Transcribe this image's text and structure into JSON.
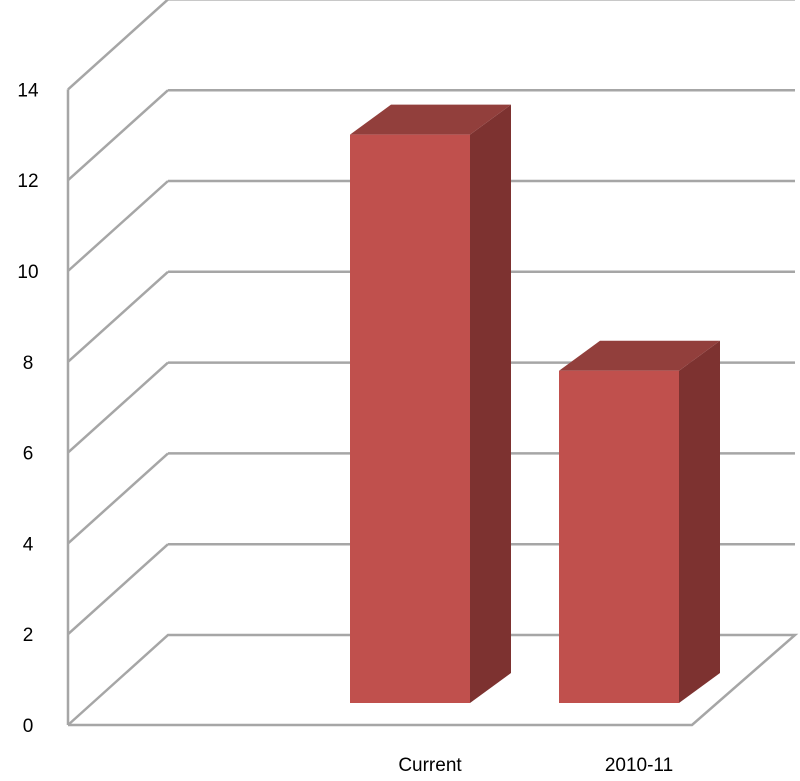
{
  "chart_data": {
    "type": "bar",
    "style": "3d-column",
    "categories": [
      "Current",
      "2010-11"
    ],
    "values": [
      13.4,
      8.2
    ],
    "title": "",
    "xlabel": "",
    "ylabel": "",
    "ylim": [
      0,
      14
    ],
    "yticks": [
      "0",
      "2",
      "4",
      "6",
      "8",
      "10",
      "12",
      "14"
    ],
    "grid": true,
    "legend": "none",
    "colors": {
      "bar_front": "#C0504D",
      "bar_side": "#7D3230",
      "bar_top": "#923F3C",
      "grid": "#A6A6A6"
    }
  }
}
